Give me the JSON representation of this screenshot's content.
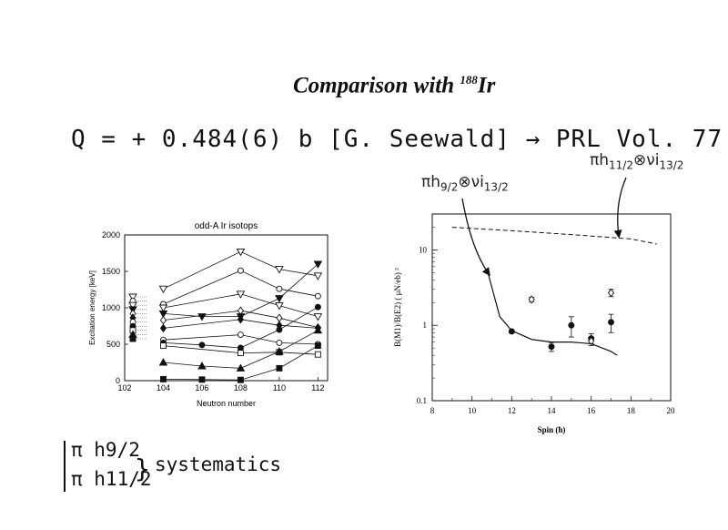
{
  "slide": {
    "title": "Comparison with",
    "title_isotope": "188",
    "title_element": "Ir",
    "quadrupole_line": "Q = + 0.484(6) b [G. Seewald] → PRL Vol. 77",
    "annotation_h9": {
      "pre": "πh",
      "sub1": "9/2",
      "mid": "⊗νi",
      "sub2": "13/2"
    },
    "annotation_h11": {
      "pre": "πh",
      "sub1": "11/2",
      "mid": "⊗νi",
      "sub2": "13/2"
    },
    "systematics": {
      "line1": "π h9/2",
      "line2": "π h11/2",
      "word": "systematics"
    }
  },
  "chart_data": [
    {
      "type": "line",
      "title": "odd-A Ir isotops",
      "xlabel": "Neutron number",
      "ylabel": "Excitation energy [keV]",
      "xlim": [
        102,
        112.5
      ],
      "ylim": [
        0,
        2000
      ],
      "xticks": [
        102,
        104,
        106,
        108,
        110,
        112
      ],
      "yticks": [
        0,
        500,
        1000,
        1500,
        2000
      ],
      "legend": "left",
      "series": [
        {
          "marker": "open-triangle-down",
          "points": [
            [
              104,
              1260
            ],
            [
              108,
              1770
            ],
            [
              110,
              1530
            ],
            [
              112,
              1440
            ]
          ]
        },
        {
          "marker": "open-circle",
          "points": [
            [
              104,
              1050
            ],
            [
              108,
              1510
            ],
            [
              110,
              1260
            ],
            [
              112,
              1160
            ]
          ]
        },
        {
          "marker": "open-triangle-down",
          "points": [
            [
              104,
              1000
            ],
            [
              108,
              1190
            ],
            [
              110,
              1030
            ],
            [
              112,
              880
            ]
          ]
        },
        {
          "marker": "filled-triangle-down",
          "points": [
            [
              104,
              920
            ],
            [
              106,
              880
            ],
            [
              108,
              880
            ],
            [
              110,
              1130
            ],
            [
              112,
              1600
            ]
          ]
        },
        {
          "marker": "open-diamond",
          "points": [
            [
              104,
              830
            ],
            [
              108,
              960
            ],
            [
              110,
              860
            ],
            [
              112,
              730
            ]
          ]
        },
        {
          "marker": "filled-diamond",
          "points": [
            [
              104,
              720
            ],
            [
              108,
              840
            ],
            [
              110,
              760
            ],
            [
              112,
              720
            ]
          ]
        },
        {
          "marker": "open-circle",
          "points": [
            [
              104,
              560
            ],
            [
              108,
              630
            ],
            [
              110,
              520
            ],
            [
              112,
              500
            ]
          ]
        },
        {
          "marker": "filled-circle",
          "points": [
            [
              104,
              520
            ],
            [
              106,
              490
            ],
            [
              108,
              450
            ],
            [
              110,
              700
            ],
            [
              112,
              1010
            ]
          ]
        },
        {
          "marker": "open-square",
          "points": [
            [
              104,
              480
            ],
            [
              108,
              380
            ],
            [
              110,
              390
            ],
            [
              112,
              360
            ]
          ]
        },
        {
          "marker": "filled-triangle-up",
          "points": [
            [
              104,
              250
            ],
            [
              106,
              200
            ],
            [
              108,
              170
            ],
            [
              110,
              400
            ],
            [
              112,
              690
            ]
          ]
        },
        {
          "marker": "filled-square",
          "points": [
            [
              104,
              20
            ],
            [
              106,
              15
            ],
            [
              108,
              10
            ],
            [
              110,
              170
            ],
            [
              112,
              480
            ]
          ]
        }
      ]
    },
    {
      "type": "scatter",
      "xlabel": "Spin (ħ)",
      "ylabel": "B(M1)/B(E2) ( μN/eb) ²",
      "xlim": [
        8,
        20
      ],
      "ylim": [
        0.1,
        30
      ],
      "yscale": "log",
      "xticks": [
        8,
        10,
        12,
        14,
        16,
        18,
        20
      ],
      "yticks": [
        0.1,
        1,
        10
      ],
      "series": [
        {
          "marker": "filled-circle",
          "points": [
            {
              "x": 12,
              "y": 0.83,
              "err": 0.03
            },
            {
              "x": 14,
              "y": 0.52,
              "err": 0.07
            },
            {
              "x": 15,
              "y": 1.0,
              "err": 0.3
            },
            {
              "x": 16,
              "y": 0.67,
              "err": 0.1
            },
            {
              "x": 17,
              "y": 1.1,
              "err": 0.3
            }
          ]
        },
        {
          "marker": "open-diamond",
          "points": [
            {
              "x": 13,
              "y": 2.2,
              "err": 0.15
            },
            {
              "x": 16,
              "y": 0.62,
              "err": 0.08
            },
            {
              "x": 17,
              "y": 2.7,
              "err": 0.3
            }
          ]
        },
        {
          "line": "solid",
          "points": [
            [
              10.8,
              5.0
            ],
            [
              11.4,
              1.3
            ],
            [
              12.0,
              0.85
            ],
            [
              13.0,
              0.65
            ],
            [
              14.0,
              0.6
            ],
            [
              15.0,
              0.6
            ],
            [
              16.0,
              0.57
            ],
            [
              17.0,
              0.45
            ],
            [
              17.3,
              0.4
            ]
          ]
        },
        {
          "line": "dashed",
          "points": [
            [
              9.0,
              20
            ],
            [
              12.0,
              18
            ],
            [
              15.0,
              16
            ],
            [
              18.0,
              14
            ],
            [
              19.3,
              12
            ]
          ]
        }
      ]
    }
  ]
}
